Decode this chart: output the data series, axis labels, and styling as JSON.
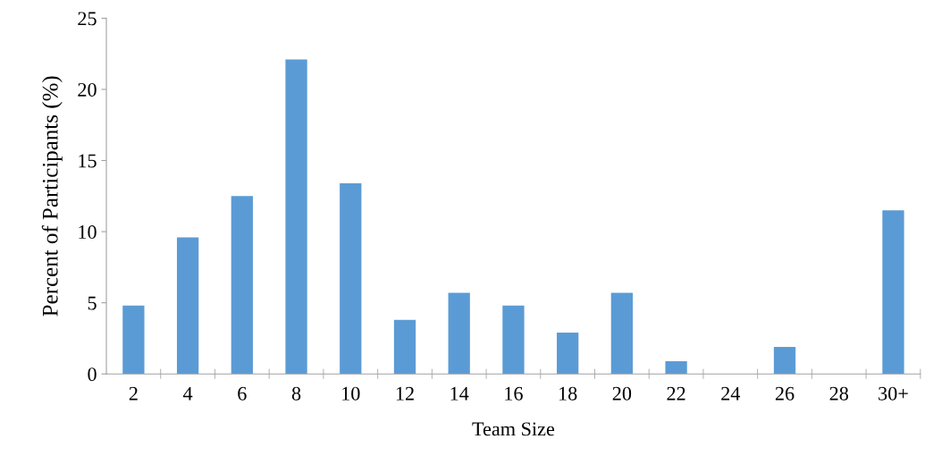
{
  "chart_data": {
    "type": "bar",
    "xlabel": "Team Size",
    "ylabel": "Percent of Participants (%)",
    "categories": [
      "2",
      "4",
      "6",
      "8",
      "10",
      "12",
      "14",
      "16",
      "18",
      "20",
      "22",
      "24",
      "26",
      "28",
      "30+"
    ],
    "values": [
      4.8,
      9.6,
      12.5,
      22.1,
      13.4,
      3.8,
      5.7,
      4.8,
      2.9,
      5.7,
      0.9,
      0,
      1.9,
      0,
      11.5
    ],
    "color": "#5b9bd5",
    "ylim": [
      0,
      25
    ],
    "yticks": [
      0,
      5,
      10,
      15,
      20,
      25
    ],
    "grid": false,
    "legend": false
  }
}
